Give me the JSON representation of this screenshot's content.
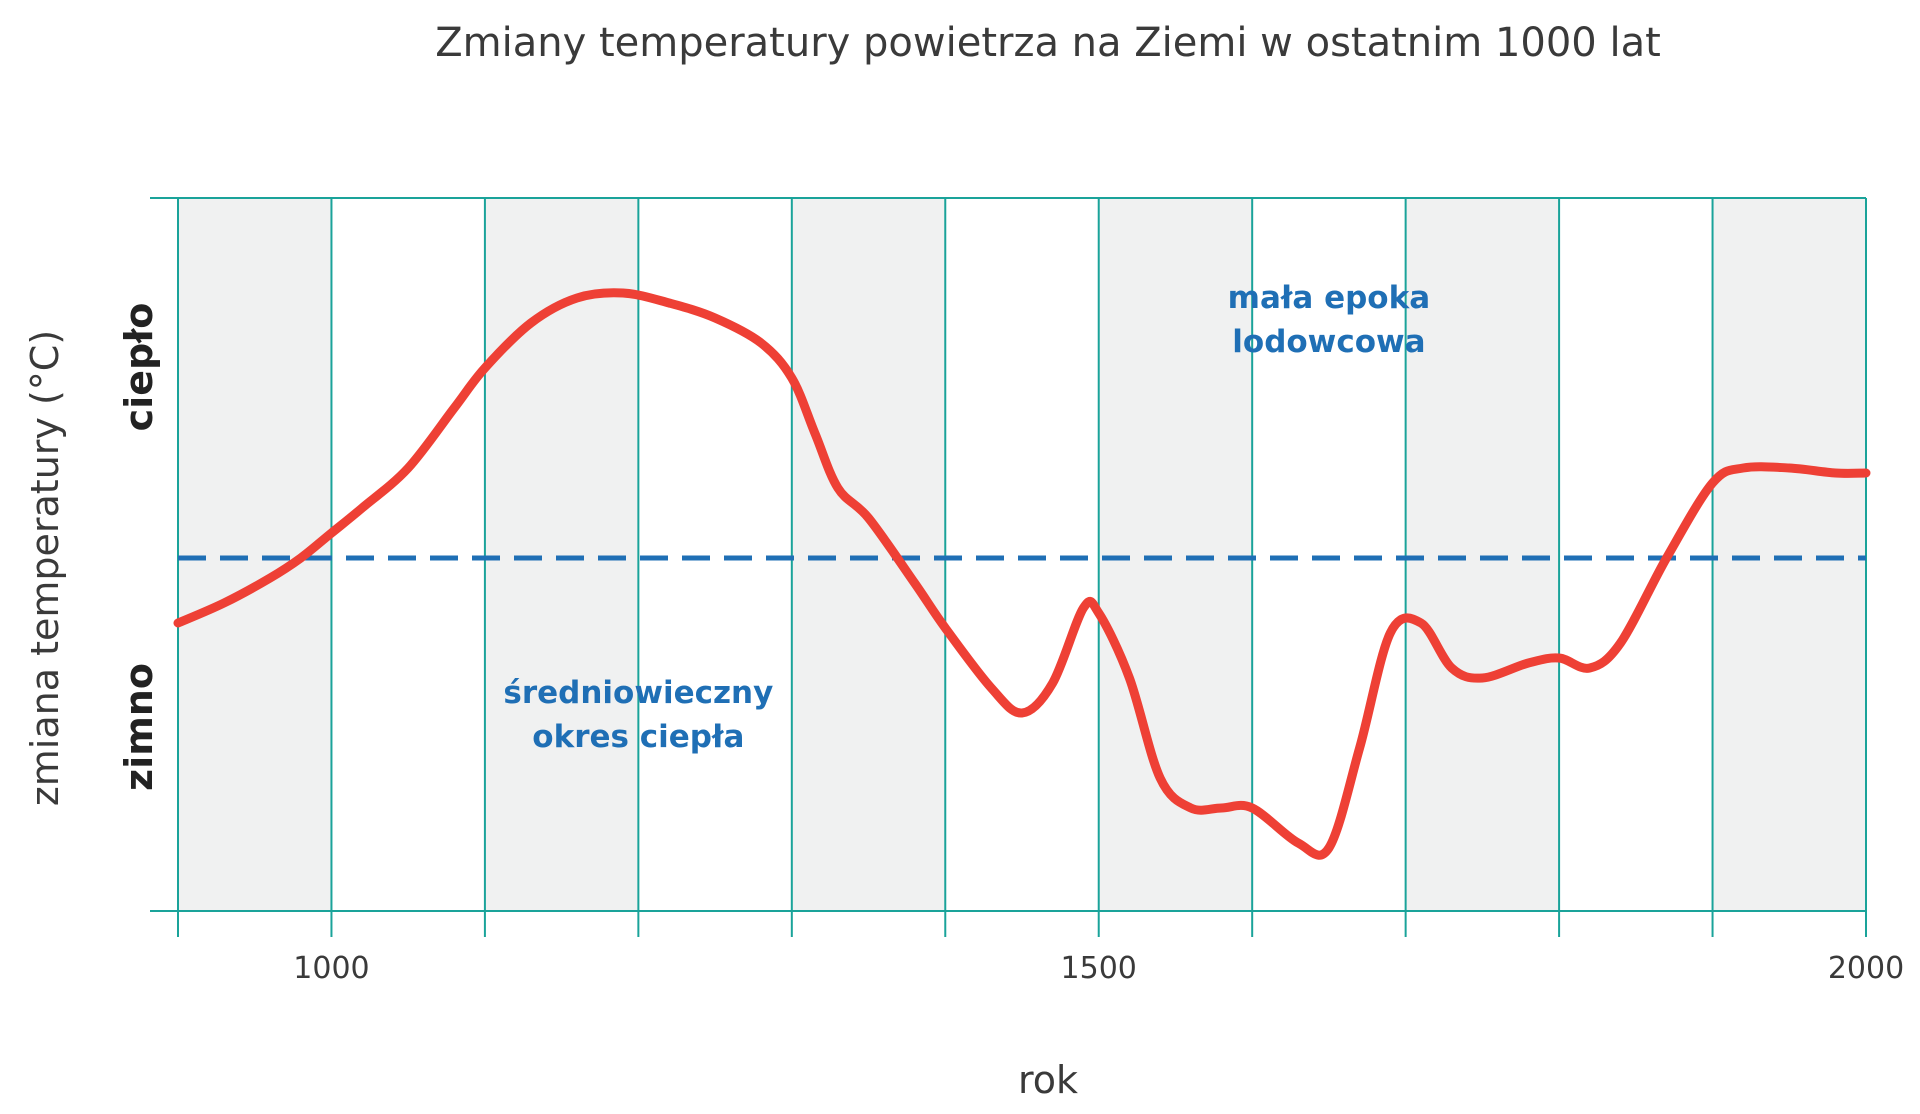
{
  "chart_data": {
    "type": "line",
    "title": "Zmiany temperatury powietrza na Ziemi w ostatnim 1000 lat",
    "xlabel": "rok",
    "ylabel": "zmiana temperatury (°C)",
    "y_category_labels": {
      "high": "ciepło",
      "low": "zimno"
    },
    "xlim": [
      900,
      2000
    ],
    "ylim": [
      -1,
      1
    ],
    "x_ticks": [
      900,
      1000,
      1100,
      1200,
      1300,
      1400,
      1500,
      1600,
      1700,
      1800,
      1900,
      2000
    ],
    "x_tick_labels": [
      {
        "value": 1000,
        "label": "1000"
      },
      {
        "value": 1500,
        "label": "1500"
      },
      {
        "value": 2000,
        "label": "2000"
      }
    ],
    "alternating_bands": [
      [
        900,
        1000
      ],
      [
        1100,
        1200
      ],
      [
        1300,
        1400
      ],
      [
        1500,
        1600
      ],
      [
        1700,
        1800
      ],
      [
        1900,
        2000
      ]
    ],
    "grid": true,
    "reference_line": {
      "y": 0,
      "style": "dashed",
      "color": "#1f6fb5"
    },
    "series": [
      {
        "color": "#ee4035",
        "points": [
          [
            900,
            -0.13
          ],
          [
            930,
            -0.09
          ],
          [
            960,
            -0.04
          ],
          [
            980,
            0.0
          ],
          [
            1000,
            0.05
          ],
          [
            1020,
            0.1
          ],
          [
            1050,
            0.18
          ],
          [
            1080,
            0.3
          ],
          [
            1100,
            0.38
          ],
          [
            1130,
            0.47
          ],
          [
            1160,
            0.52
          ],
          [
            1190,
            0.53
          ],
          [
            1220,
            0.51
          ],
          [
            1250,
            0.48
          ],
          [
            1280,
            0.43
          ],
          [
            1300,
            0.36
          ],
          [
            1315,
            0.25
          ],
          [
            1330,
            0.14
          ],
          [
            1350,
            0.08
          ],
          [
            1380,
            -0.05
          ],
          [
            1400,
            -0.14
          ],
          [
            1430,
            -0.26
          ],
          [
            1450,
            -0.31
          ],
          [
            1470,
            -0.25
          ],
          [
            1490,
            -0.1
          ],
          [
            1500,
            -0.11
          ],
          [
            1520,
            -0.24
          ],
          [
            1540,
            -0.44
          ],
          [
            1560,
            -0.5
          ],
          [
            1580,
            -0.5
          ],
          [
            1600,
            -0.5
          ],
          [
            1630,
            -0.57
          ],
          [
            1650,
            -0.58
          ],
          [
            1670,
            -0.38
          ],
          [
            1690,
            -0.15
          ],
          [
            1710,
            -0.13
          ],
          [
            1730,
            -0.22
          ],
          [
            1750,
            -0.24
          ],
          [
            1780,
            -0.21
          ],
          [
            1800,
            -0.2
          ],
          [
            1820,
            -0.22
          ],
          [
            1840,
            -0.17
          ],
          [
            1870,
            0.0
          ],
          [
            1900,
            0.15
          ],
          [
            1920,
            0.18
          ],
          [
            1950,
            0.18
          ],
          [
            1980,
            0.17
          ],
          [
            2000,
            0.17
          ]
        ]
      }
    ],
    "annotations": [
      {
        "lines": [
          "średniowieczny",
          "okres ciepła"
        ],
        "x": 1200,
        "y": -0.29,
        "color": "#1f6fb5"
      },
      {
        "lines": [
          "mała epoka",
          "lodowcowa"
        ],
        "x": 1650,
        "y": 0.5,
        "color": "#1f6fb5"
      }
    ],
    "colors": {
      "grid": "#1aa39a",
      "band": "#f0f1f1",
      "line": "#ee4035",
      "reference": "#1f6fb5"
    }
  }
}
